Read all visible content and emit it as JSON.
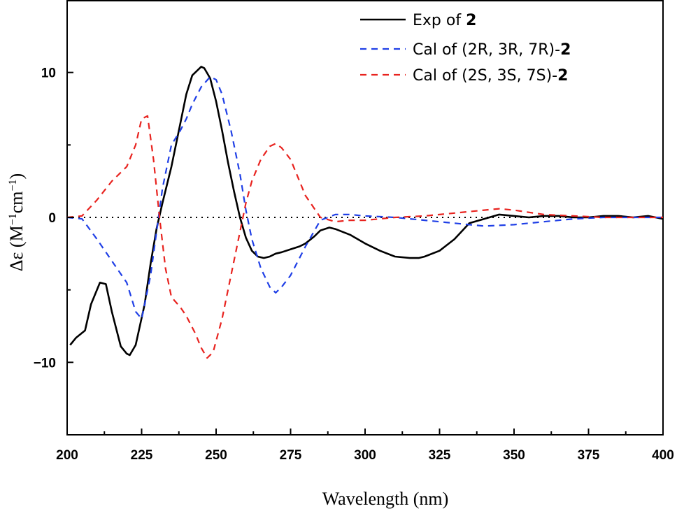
{
  "chart_data": {
    "type": "line",
    "xlabel": "Wavelength (nm)",
    "ylabel": {
      "main": "Δε (M",
      "sup1": "−1",
      "mid": "cm",
      "sup2": "−1",
      "end": ")"
    },
    "xlim": [
      200,
      400
    ],
    "ylim": [
      -15,
      15
    ],
    "x_ticks": [
      200,
      225,
      250,
      275,
      300,
      325,
      350,
      375,
      400
    ],
    "y_ticks_labeled": [
      -10,
      0,
      10
    ],
    "y_minor_ticks": [
      -15,
      -5,
      5,
      15
    ],
    "grid": false,
    "zero_line": true,
    "legend_position": "top-right",
    "series": [
      {
        "name": "Exp of ",
        "name_bold": "2",
        "color": "#000000",
        "dash": "solid",
        "x": [
          201,
          203,
          206,
          208,
          211,
          213,
          215,
          218,
          220,
          221,
          223,
          226,
          228,
          230,
          232,
          235,
          238,
          240,
          242,
          245,
          246,
          248,
          250,
          252,
          254,
          256,
          258,
          260,
          262,
          264,
          266,
          268,
          270,
          272,
          275,
          278,
          280,
          283,
          285,
          288,
          290,
          295,
          300,
          305,
          310,
          315,
          318,
          320,
          325,
          330,
          335,
          340,
          345,
          350,
          355,
          360,
          365,
          370,
          375,
          380,
          385,
          390,
          395,
          400
        ],
        "y": [
          -8.8,
          -8.3,
          -7.8,
          -6.0,
          -4.5,
          -4.6,
          -6.5,
          -8.9,
          -9.4,
          -9.5,
          -8.8,
          -6.0,
          -3.2,
          -0.8,
          1.0,
          3.5,
          6.5,
          8.5,
          9.8,
          10.4,
          10.3,
          9.6,
          8.0,
          6.0,
          3.8,
          1.8,
          0.0,
          -1.4,
          -2.3,
          -2.7,
          -2.8,
          -2.7,
          -2.5,
          -2.4,
          -2.2,
          -2.0,
          -1.8,
          -1.3,
          -0.9,
          -0.7,
          -0.8,
          -1.2,
          -1.8,
          -2.3,
          -2.7,
          -2.8,
          -2.8,
          -2.7,
          -2.3,
          -1.5,
          -0.4,
          -0.1,
          0.2,
          0.1,
          0.0,
          0.1,
          0.1,
          0.0,
          0.0,
          0.1,
          0.1,
          0.0,
          0.1,
          -0.1
        ]
      },
      {
        "name": "Cal of (2R, 3R, 7R)-",
        "name_bold": "2",
        "color": "#1f3fe6",
        "dash": "dashed",
        "x": [
          200,
          205,
          210,
          215,
          220,
          223,
          225,
          228,
          230,
          232,
          235,
          238,
          240,
          242,
          245,
          248,
          250,
          252,
          255,
          258,
          260,
          262,
          265,
          268,
          270,
          272,
          275,
          280,
          285,
          290,
          295,
          300,
          310,
          320,
          330,
          340,
          350,
          360,
          370,
          380,
          390,
          400
        ],
        "y": [
          0.0,
          -0.1,
          -1.5,
          -3.0,
          -4.5,
          -6.5,
          -7.0,
          -4.0,
          -1.0,
          2.0,
          5.0,
          6.0,
          6.8,
          7.8,
          9.0,
          9.7,
          9.5,
          8.5,
          6.0,
          3.0,
          0.5,
          -1.5,
          -3.5,
          -4.8,
          -5.2,
          -4.8,
          -4.0,
          -2.0,
          -0.2,
          0.2,
          0.2,
          0.1,
          0.0,
          -0.2,
          -0.4,
          -0.6,
          -0.5,
          -0.3,
          -0.1,
          0.0,
          0.0,
          0.0
        ]
      },
      {
        "name": "Cal of (2S, 3S, 7S)-",
        "name_bold": "2",
        "color": "#e8231f",
        "dash": "dashed",
        "x": [
          200,
          205,
          210,
          215,
          220,
          223,
          225,
          227,
          229,
          231,
          233,
          235,
          238,
          240,
          243,
          245,
          247,
          249,
          252,
          255,
          258,
          260,
          262,
          265,
          268,
          270,
          272,
          275,
          280,
          285,
          290,
          295,
          300,
          310,
          320,
          330,
          340,
          345,
          350,
          360,
          370,
          380,
          390,
          400
        ],
        "y": [
          0.0,
          0.1,
          1.2,
          2.5,
          3.5,
          5.0,
          6.8,
          7.0,
          4.0,
          0.0,
          -3.5,
          -5.5,
          -6.2,
          -6.8,
          -8.0,
          -9.0,
          -9.7,
          -9.3,
          -7.0,
          -4.0,
          -1.0,
          1.0,
          2.5,
          4.0,
          4.9,
          5.1,
          4.8,
          4.0,
          1.5,
          0.0,
          -0.3,
          -0.2,
          -0.2,
          0.0,
          0.1,
          0.3,
          0.5,
          0.6,
          0.5,
          0.2,
          0.1,
          0.0,
          0.0,
          0.0
        ]
      }
    ]
  }
}
